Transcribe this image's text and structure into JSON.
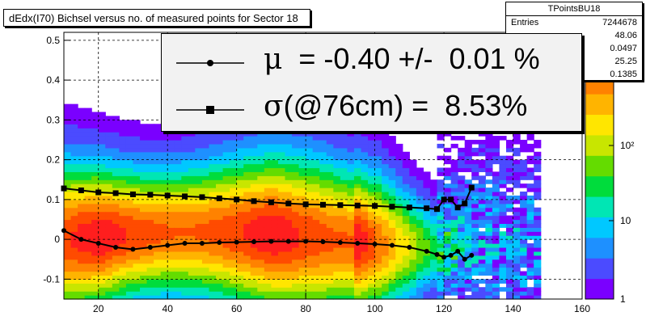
{
  "chart_data": {
    "type": "heatmap",
    "title": "dEdx(I70) Bichsel versus no. of measured points for Sector 18",
    "xlabel": "",
    "ylabel": "",
    "xlim": [
      10,
      160
    ],
    "ylim": [
      -0.15,
      0.52
    ],
    "x_ticks": [
      20,
      40,
      60,
      80,
      100,
      120,
      140,
      160
    ],
    "y_ticks": [
      -0.1,
      0,
      0.1,
      0.2,
      0.3,
      0.4,
      0.5
    ],
    "y_tick_labels": [
      "-0.1",
      "0",
      "0.1",
      "0.2",
      "0.3",
      "0.4",
      "0.5"
    ],
    "z_scale": "log",
    "z_ticks": [
      "1",
      "10",
      "10²"
    ],
    "grid": true,
    "series": [
      {
        "marker": "square",
        "x": [
          10,
          15,
          20,
          25,
          30,
          35,
          40,
          45,
          50,
          55,
          60,
          65,
          70,
          75,
          80,
          85,
          90,
          95,
          100,
          105,
          110,
          115,
          118,
          120,
          122,
          124,
          126,
          128
        ],
        "y": [
          0.128,
          0.123,
          0.118,
          0.116,
          0.113,
          0.112,
          0.11,
          0.108,
          0.106,
          0.103,
          0.1,
          0.096,
          0.093,
          0.09,
          0.088,
          0.087,
          0.086,
          0.085,
          0.084,
          0.082,
          0.08,
          0.078,
          0.076,
          0.1,
          0.1,
          0.08,
          0.09,
          0.13
        ]
      },
      {
        "marker": "circle",
        "x": [
          10,
          15,
          20,
          25,
          30,
          35,
          40,
          45,
          50,
          55,
          60,
          65,
          70,
          75,
          80,
          85,
          90,
          95,
          100,
          105,
          110,
          115,
          118,
          120,
          122,
          124,
          126,
          128
        ],
        "y": [
          0.022,
          0.0,
          -0.01,
          -0.02,
          -0.025,
          -0.02,
          -0.015,
          -0.01,
          -0.01,
          -0.008,
          -0.007,
          -0.006,
          -0.005,
          -0.005,
          -0.005,
          -0.006,
          -0.008,
          -0.01,
          -0.012,
          -0.015,
          -0.02,
          -0.03,
          -0.038,
          -0.045,
          -0.04,
          -0.03,
          -0.05,
          -0.04
        ]
      }
    ]
  },
  "stats": {
    "name": "TPointsBU18",
    "rows": [
      {
        "label": "Entries",
        "value": "7244678"
      },
      {
        "label": "",
        "value": "48.06"
      },
      {
        "label": "",
        "value": "0.0497"
      },
      {
        "label": "",
        "value": "25.25"
      },
      {
        "label": "",
        "value": "0.1385"
      }
    ]
  },
  "legend": {
    "mu_symbol": "μ",
    "mu_text": "  = -0.40 +/-  0.01 %",
    "sigma_symbol": "σ",
    "sigma_text": "(@76cm) =  8.53%"
  },
  "colors": {
    "palette": [
      "#7a00ff",
      "#4b4bff",
      "#1e90ff",
      "#00c8ff",
      "#00e6b4",
      "#00dc3c",
      "#64dc00",
      "#c8e600",
      "#ffe600",
      "#ffb400",
      "#ff8200",
      "#ff4b00",
      "#ff1e1e"
    ]
  }
}
